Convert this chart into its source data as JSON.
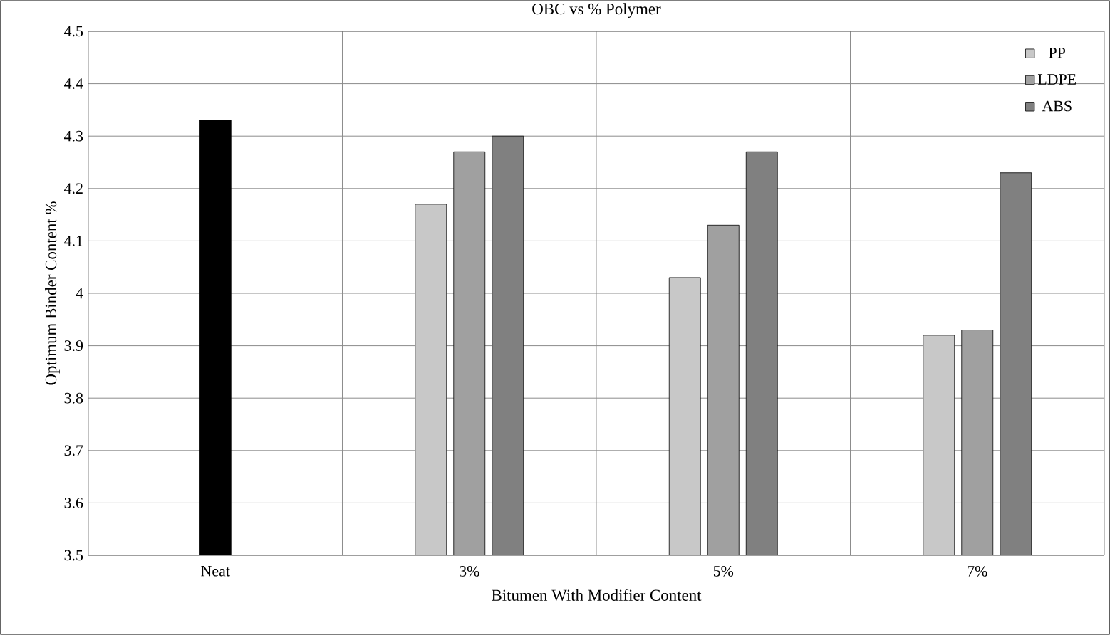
{
  "chart_data": {
    "type": "bar",
    "title": "OBC vs % Polymer",
    "xlabel": "Bitumen With Modifier Content",
    "ylabel": "Optimum Binder Content %",
    "categories": [
      "Neat",
      "3%",
      "5%",
      "7%"
    ],
    "series": [
      {
        "color": "#000000",
        "values": [
          4.33,
          null,
          null,
          null
        ]
      },
      {
        "name": "PP",
        "color": "#c8c8c8",
        "values": [
          null,
          4.17,
          4.03,
          3.92
        ]
      },
      {
        "name": "LDPE",
        "color": "#a0a0a0",
        "values": [
          null,
          4.27,
          4.13,
          3.93
        ]
      },
      {
        "name": "ABS",
        "color": "#808080",
        "values": [
          null,
          4.3,
          4.27,
          4.23
        ]
      }
    ],
    "ylim": [
      3.5,
      4.5
    ],
    "yticks": [
      3.5,
      3.6,
      3.7,
      3.8,
      3.9,
      4,
      4.1,
      4.2,
      4.3,
      4.4,
      4.5
    ],
    "grid": true,
    "legend": "top right"
  }
}
